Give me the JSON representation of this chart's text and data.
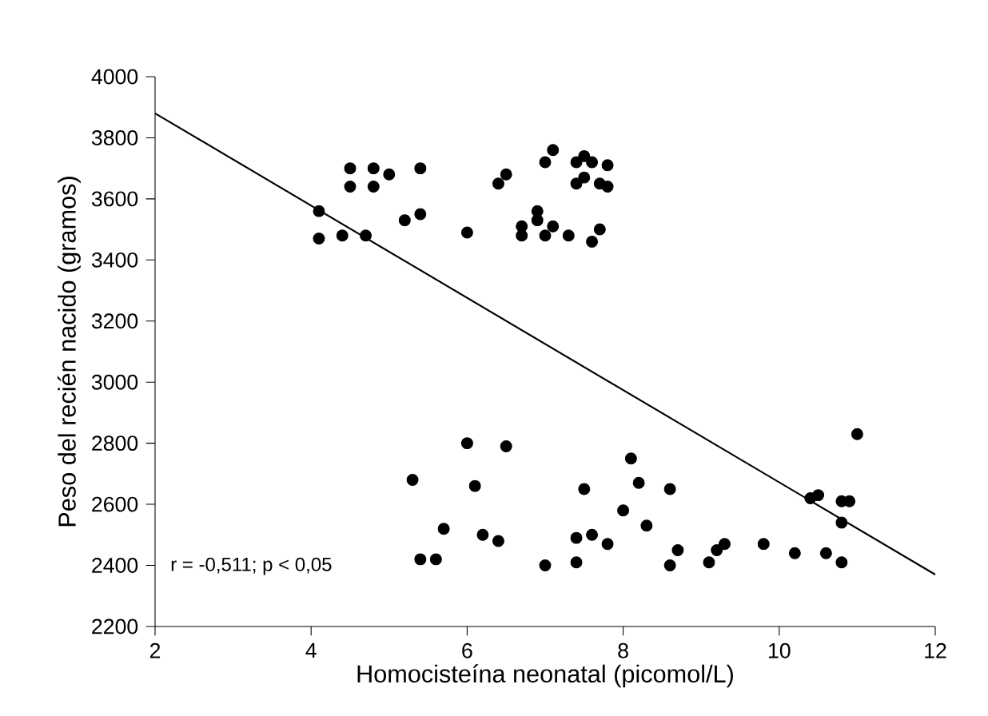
{
  "chart_data": {
    "type": "scatter",
    "xlabel": "Homocisteína neonatal (picomol/L)",
    "ylabel": "Peso del recién nacido (gramos)",
    "xlim": [
      2,
      12
    ],
    "xticks": [
      2,
      4,
      6,
      8,
      10,
      12
    ],
    "ylim": [
      2200,
      4000
    ],
    "yticks": [
      2200,
      2400,
      2600,
      2800,
      3000,
      3200,
      3400,
      3600,
      3800,
      4000
    ],
    "marker": "circle",
    "annotations": [
      "r = -0,511; p < 0,05"
    ],
    "series": [
      {
        "color": "#000000",
        "x": [
          4.1,
          4.1,
          4.4,
          4.5,
          4.5,
          4.7,
          4.8,
          4.8,
          5.0,
          5.2,
          5.4,
          5.4,
          6.0,
          6.4,
          6.5,
          6.7,
          6.7,
          6.9,
          6.9,
          7.0,
          7.0,
          7.1,
          7.1,
          7.3,
          7.4,
          7.4,
          7.5,
          7.5,
          7.6,
          7.6,
          7.7,
          7.7,
          7.8,
          7.8,
          5.3,
          5.4,
          5.6,
          5.7,
          6.0,
          6.1,
          6.2,
          6.4,
          6.5,
          7.0,
          7.4,
          7.4,
          7.5,
          7.6,
          7.8,
          8.0,
          8.1,
          8.2,
          8.3,
          8.6,
          8.6,
          8.7,
          9.1,
          9.2,
          9.3,
          9.8,
          10.2,
          10.4,
          10.5,
          10.6,
          10.8,
          10.8,
          10.8,
          10.9,
          11.0
        ],
        "values": [
          3560,
          3470,
          3480,
          3700,
          3640,
          3480,
          3700,
          3640,
          3680,
          3530,
          3700,
          3550,
          3490,
          3650,
          3680,
          3510,
          3480,
          3530,
          3560,
          3720,
          3480,
          3760,
          3510,
          3480,
          3720,
          3650,
          3670,
          3740,
          3460,
          3720,
          3500,
          3650,
          3710,
          3640,
          2680,
          2420,
          2420,
          2520,
          2800,
          2660,
          2500,
          2480,
          2790,
          2400,
          2410,
          2490,
          2650,
          2500,
          2470,
          2580,
          2750,
          2670,
          2530,
          2650,
          2400,
          2450,
          2410,
          2450,
          2470,
          2470,
          2440,
          2620,
          2630,
          2440,
          2410,
          2540,
          2610,
          2610,
          2830
        ]
      },
      {
        "type": "line",
        "color": "#000000",
        "marker": "none",
        "x": [
          2,
          12
        ],
        "values": [
          3880,
          2370
        ]
      }
    ]
  }
}
